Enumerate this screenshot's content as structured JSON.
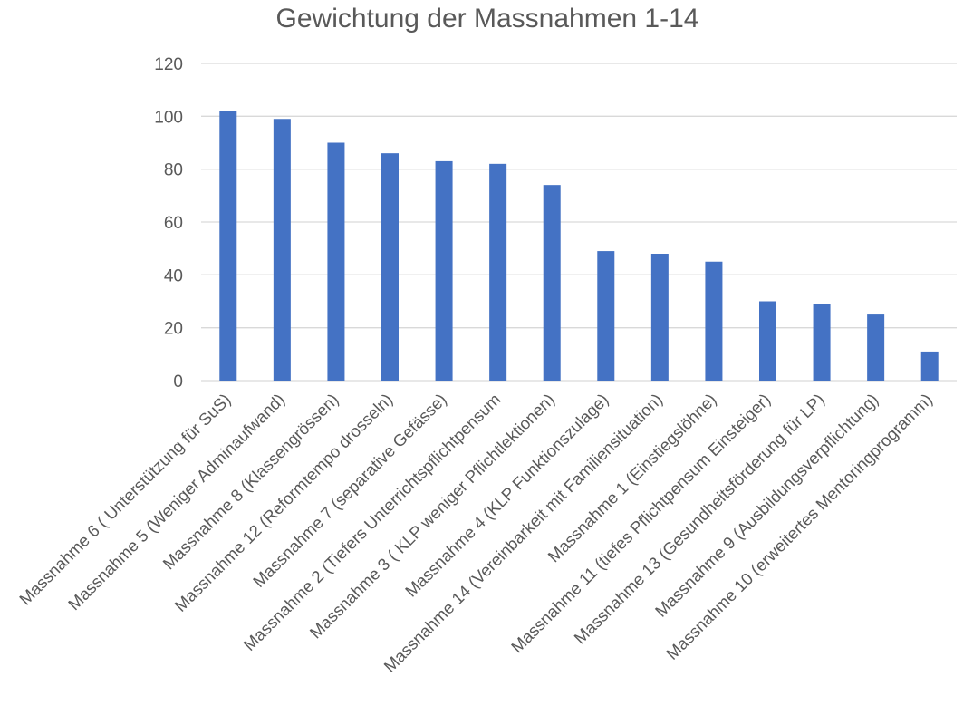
{
  "chart_data": {
    "type": "bar",
    "title": "Gewichtung der Massnahmen 1-14",
    "xlabel": "",
    "ylabel": "",
    "ylim": [
      0,
      120
    ],
    "yticks": [
      0,
      20,
      40,
      60,
      80,
      100,
      120
    ],
    "grid": true,
    "legend": "none",
    "bar_color": "#4472c4",
    "categories": [
      "Massnahme 6 ( Unterstützung für SuS)",
      "Massnahme 5 (Weniger Adminaufwand)",
      "Massnahme 8 (Klassengrössen)",
      "Massnahme 12 (Reformtempo drosseln)",
      "Massnahme 7 (separative Gefässe)",
      "Massnahme 2 (Tiefers Unterrichtspflichtpensum",
      "Massnahme 3 ( KLP weniger Pflichtlektionen)",
      "Massnahme 4 (KLP Funktionszulage)",
      "Massnahme 14 (Vereinbarkeit mit Familiensituation)",
      "Massnahme 1 (Einstiegslöhne)",
      "Massnahme 11 (tiefes Pflichtpensum Einsteiger)",
      "Massnahme 13 (Gesundheitsförderung für LP)",
      "Massnahme 9 (Ausbildungsverpflichtung)",
      "Massnahme 10 (erweitertes Mentoringprogramm)"
    ],
    "values": [
      102,
      99,
      90,
      86,
      83,
      82,
      74,
      49,
      48,
      45,
      30,
      29,
      25,
      11
    ]
  }
}
